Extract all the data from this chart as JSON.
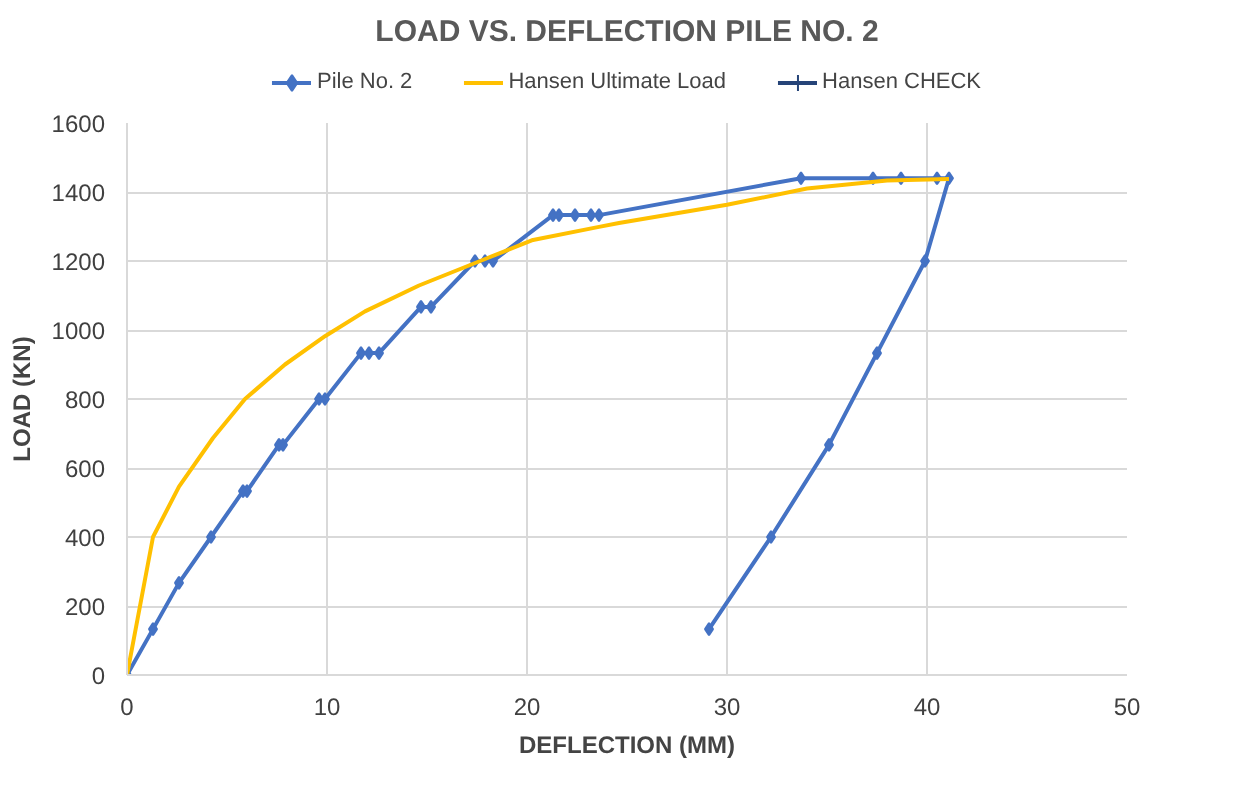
{
  "chart_data": {
    "type": "line",
    "title": "LOAD VS. DEFLECTION PILE NO. 2",
    "xlabel": "DEFLECTION (MM)",
    "ylabel": "LOAD (KN)",
    "xlim": [
      0,
      50
    ],
    "ylim": [
      0,
      1600
    ],
    "xticks": [
      0,
      10,
      20,
      30,
      40,
      50
    ],
    "yticks": [
      0,
      200,
      400,
      600,
      800,
      1000,
      1200,
      1400,
      1600
    ],
    "grid": true,
    "legend": "top",
    "series": [
      {
        "name": "Pile No. 2",
        "color": "#4472c4",
        "marker": "diamond",
        "x": [
          0,
          1.3,
          2.6,
          4.2,
          5.8,
          6.0,
          7.6,
          7.8,
          9.6,
          9.9,
          11.7,
          12.1,
          12.6,
          14.7,
          15.2,
          17.4,
          17.9,
          18.3,
          21.3,
          21.6,
          22.4,
          23.2,
          23.6,
          33.7,
          37.3,
          38.7,
          40.5,
          41.1,
          39.9,
          37.5,
          35.1,
          32.2,
          29.1
        ],
        "values": [
          0,
          133,
          267,
          400,
          533,
          533,
          667,
          667,
          800,
          800,
          933,
          933,
          933,
          1067,
          1067,
          1200,
          1200,
          1200,
          1333,
          1333,
          1333,
          1333,
          1333,
          1440,
          1440,
          1440,
          1440,
          1440,
          1200,
          933,
          667,
          400,
          133
        ]
      },
      {
        "name": "Hansen Ultimate Load",
        "color": "#ffc000",
        "marker": "none",
        "x": [
          0,
          1.3,
          2.6,
          4.3,
          5.9,
          7.9,
          9.9,
          11.9,
          14.6,
          18.0,
          20.3,
          23.6,
          24.6,
          30.0,
          34.0,
          38.0,
          41.1
        ],
        "values": [
          0,
          400,
          546,
          687,
          800,
          900,
          982,
          1054,
          1129,
          1208,
          1261,
          1299,
          1310,
          1363,
          1410,
          1433,
          1438
        ]
      },
      {
        "name": "Hansen CHECK",
        "color": "#264478",
        "marker": "cross"
      }
    ]
  }
}
